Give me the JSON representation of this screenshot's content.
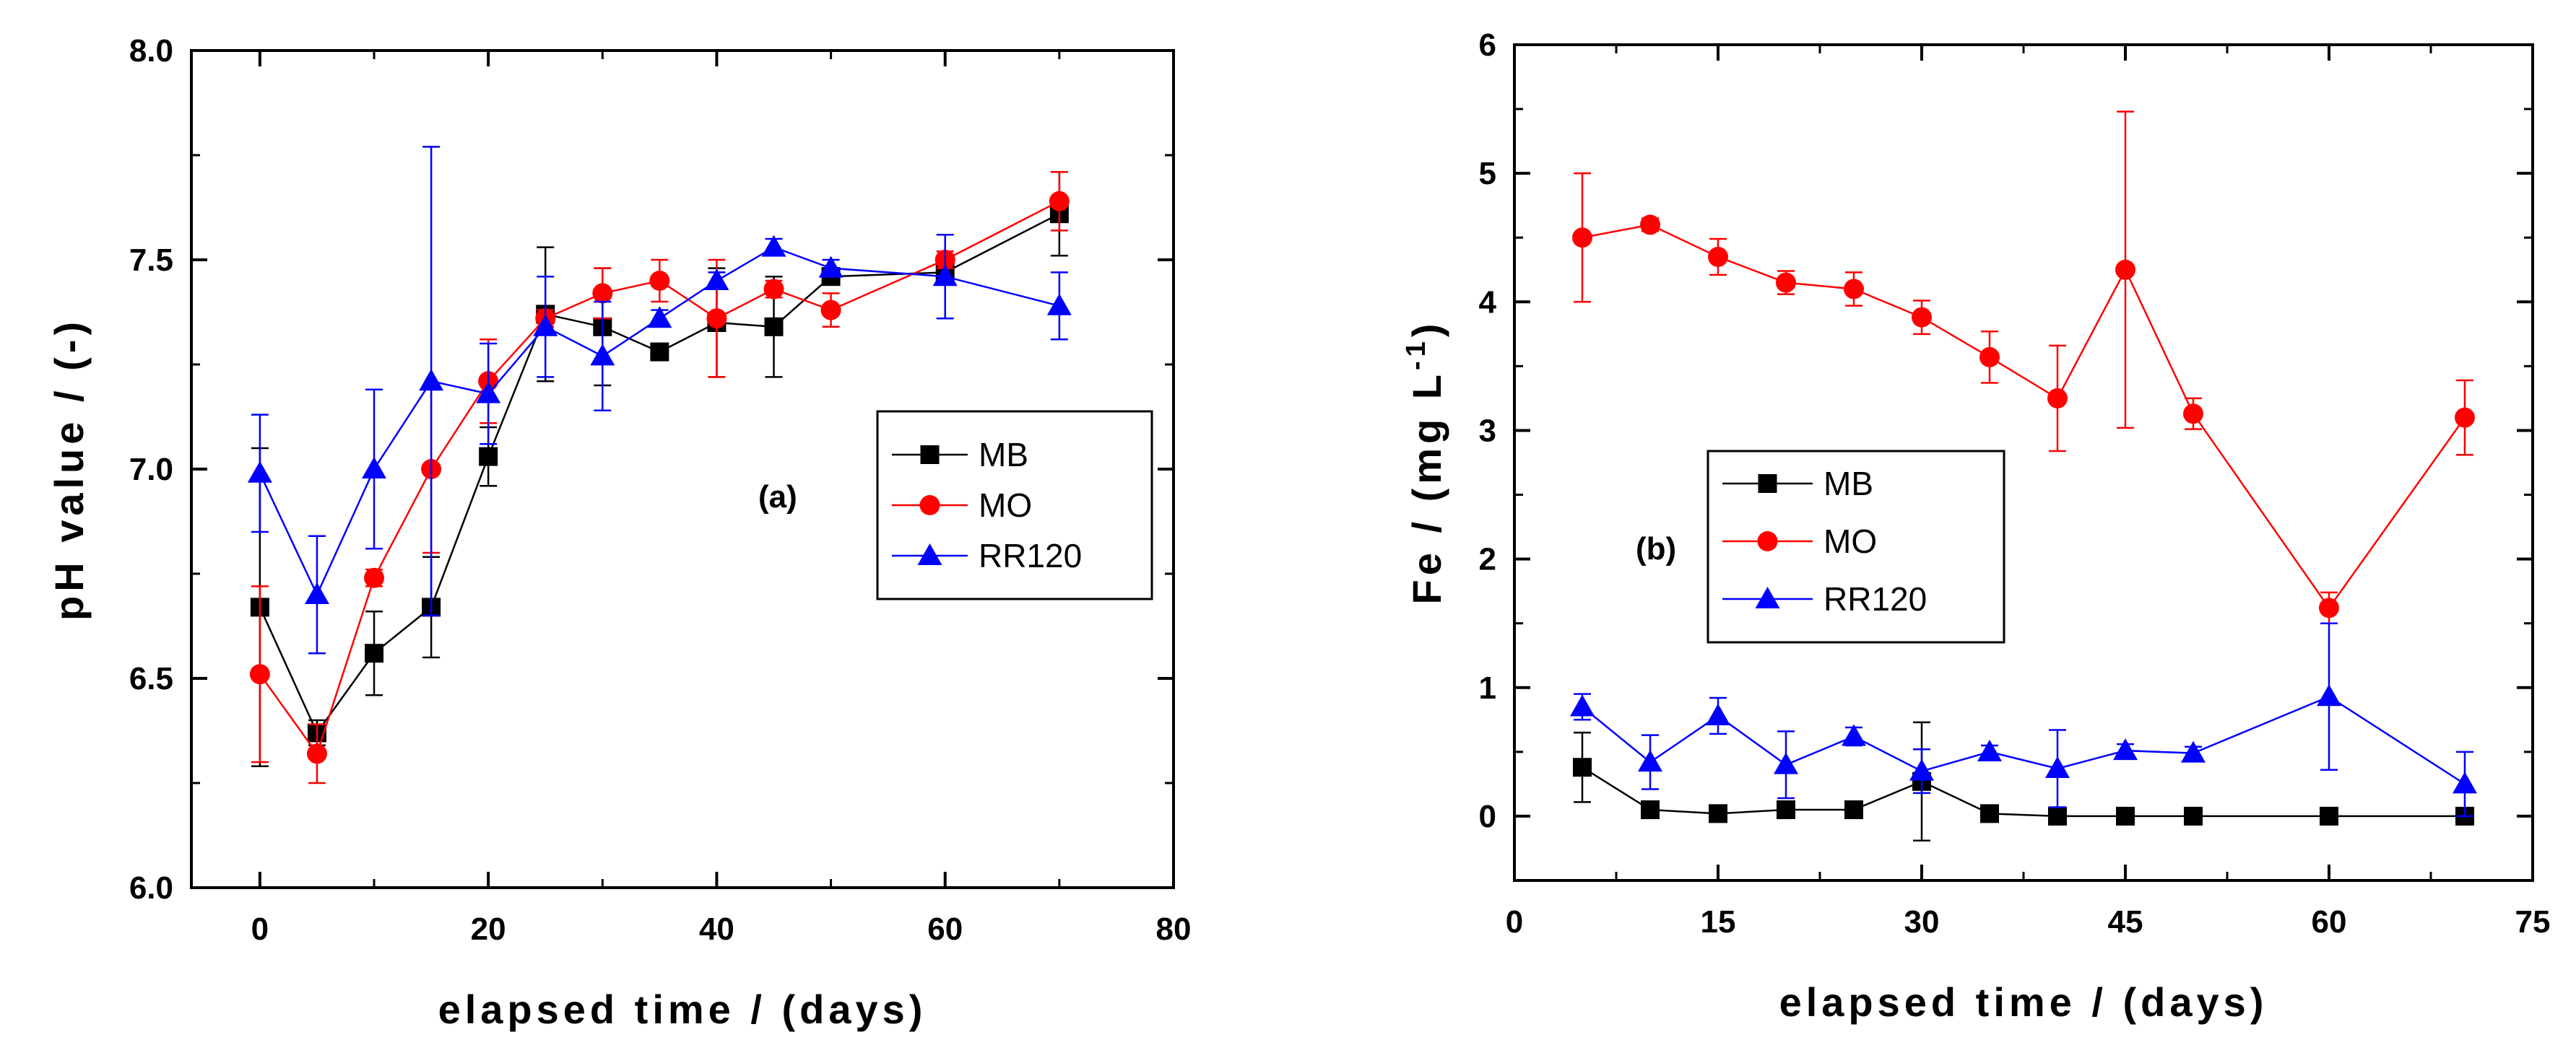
{
  "chart_data": [
    {
      "type": "line",
      "panel_label": "(a)",
      "xlabel": "elapsed time / (days)",
      "ylabel": "pH value / (-)",
      "xlim": [
        -6,
        80
      ],
      "ylim": [
        6.0,
        8.0
      ],
      "xticks": [
        0,
        20,
        40,
        60,
        80
      ],
      "xtick_labels": [
        "0",
        "20",
        "40",
        "60",
        "80"
      ],
      "yticks": [
        6.0,
        6.5,
        7.0,
        7.5,
        8.0
      ],
      "ytick_labels": [
        "6.0",
        "6.5",
        "7.0",
        "7.5",
        "8.0"
      ],
      "legend_position": "center-right",
      "series": [
        {
          "name": "MB",
          "color": "#000000",
          "marker": "square",
          "x": [
            0,
            5,
            10,
            15,
            20,
            25,
            30,
            35,
            40,
            45,
            50,
            60,
            70
          ],
          "y": [
            6.67,
            6.37,
            6.56,
            6.67,
            7.03,
            7.37,
            7.34,
            7.28,
            7.35,
            7.34,
            7.46,
            7.47,
            7.61
          ],
          "err": [
            0.38,
            0.03,
            0.1,
            0.12,
            0.07,
            0.16,
            0.14,
            0.02,
            0.13,
            0.12,
            0.02,
            0.02,
            0.1
          ]
        },
        {
          "name": "MO",
          "color": "#ff0000",
          "marker": "circle",
          "x": [
            0,
            5,
            10,
            15,
            20,
            25,
            30,
            35,
            40,
            45,
            50,
            60,
            70
          ],
          "y": [
            6.51,
            6.32,
            6.74,
            7.0,
            7.21,
            7.36,
            7.42,
            7.45,
            7.36,
            7.43,
            7.38,
            7.5,
            7.64
          ],
          "err": [
            0.21,
            0.07,
            0.02,
            0.2,
            0.1,
            0.02,
            0.06,
            0.05,
            0.14,
            0.02,
            0.04,
            0.02,
            0.07
          ]
        },
        {
          "name": "RR120",
          "color": "#0000ff",
          "marker": "triangle",
          "x": [
            0,
            5,
            10,
            15,
            20,
            25,
            30,
            35,
            40,
            45,
            50,
            60,
            70
          ],
          "y": [
            6.99,
            6.7,
            7.0,
            7.21,
            7.18,
            7.34,
            7.27,
            7.36,
            7.45,
            7.53,
            7.48,
            7.46,
            7.39
          ],
          "err": [
            0.14,
            0.14,
            0.19,
            0.56,
            0.12,
            0.12,
            0.13,
            0.02,
            0.02,
            0.02,
            0.02,
            0.1,
            0.08
          ]
        }
      ]
    },
    {
      "type": "line",
      "panel_label": "(b)",
      "xlabel": "elapsed time / (days)",
      "ylabel_main": "Fe / (mg L",
      "ylabel_sup": "-1",
      "ylabel_close": ")",
      "xlim": [
        0,
        75
      ],
      "ylim": [
        -0.5,
        6
      ],
      "xticks": [
        0,
        15,
        30,
        45,
        60,
        75
      ],
      "xtick_labels": [
        "0",
        "15",
        "30",
        "45",
        "60",
        "75"
      ],
      "yticks": [
        0,
        1,
        2,
        3,
        4,
        5,
        6
      ],
      "ytick_labels": [
        "0",
        "1",
        "2",
        "3",
        "4",
        "5",
        "6"
      ],
      "legend_position": "center-left",
      "series": [
        {
          "name": "MB",
          "color": "#000000",
          "marker": "square",
          "x": [
            5,
            10,
            15,
            20,
            25,
            30,
            35,
            40,
            45,
            50,
            60,
            70
          ],
          "y": [
            0.38,
            0.05,
            0.02,
            0.05,
            0.05,
            0.27,
            0.02,
            0.0,
            0.0,
            0.0,
            0.0,
            0.0
          ],
          "err": [
            0.27,
            0.02,
            0.01,
            0.02,
            0.02,
            0.46,
            0.01,
            0.0,
            0.0,
            0.0,
            0.0,
            0.0
          ]
        },
        {
          "name": "MO",
          "color": "#ff0000",
          "marker": "circle",
          "x": [
            5,
            10,
            15,
            20,
            25,
            30,
            35,
            40,
            45,
            50,
            60,
            70
          ],
          "y": [
            4.5,
            4.6,
            4.35,
            4.15,
            4.1,
            3.88,
            3.57,
            3.25,
            4.25,
            3.13,
            1.62,
            3.1
          ],
          "err": [
            0.5,
            0.05,
            0.14,
            0.09,
            0.13,
            0.13,
            0.2,
            0.41,
            1.23,
            0.12,
            0.12,
            0.29
          ]
        },
        {
          "name": "RR120",
          "color": "#0000ff",
          "marker": "triangle",
          "x": [
            5,
            10,
            15,
            20,
            25,
            30,
            35,
            40,
            45,
            50,
            60,
            70
          ],
          "y": [
            0.85,
            0.42,
            0.78,
            0.4,
            0.62,
            0.35,
            0.5,
            0.37,
            0.51,
            0.49,
            0.93,
            0.25
          ],
          "err": [
            0.1,
            0.21,
            0.14,
            0.26,
            0.07,
            0.17,
            0.05,
            0.3,
            0.05,
            0.05,
            0.57,
            0.25
          ]
        }
      ]
    }
  ]
}
